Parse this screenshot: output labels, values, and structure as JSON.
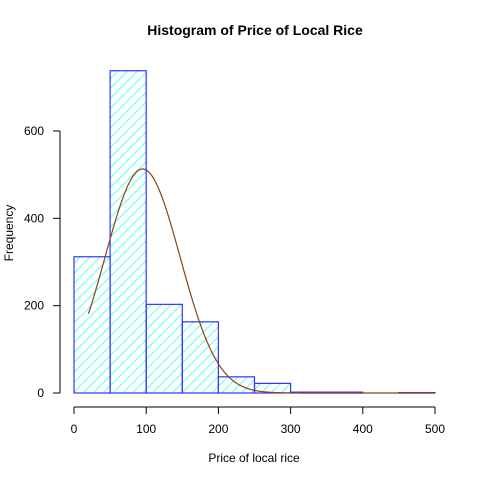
{
  "chart_data": {
    "type": "histogram",
    "title": "Histogram of Price of Local Rice",
    "xlabel": "Price of local rice",
    "ylabel": "Frequency",
    "xlim": [
      0,
      500
    ],
    "ylim": [
      0,
      740
    ],
    "x_ticks": [
      0,
      100,
      200,
      300,
      400,
      500
    ],
    "y_ticks": [
      0,
      200,
      400,
      600
    ],
    "bins": [
      {
        "start": 0,
        "end": 50,
        "count": 312
      },
      {
        "start": 50,
        "end": 100,
        "count": 738
      },
      {
        "start": 100,
        "end": 150,
        "count": 203
      },
      {
        "start": 150,
        "end": 200,
        "count": 163
      },
      {
        "start": 200,
        "end": 250,
        "count": 37
      },
      {
        "start": 250,
        "end": 300,
        "count": 22
      },
      {
        "start": 300,
        "end": 350,
        "count": 2
      },
      {
        "start": 350,
        "end": 400,
        "count": 2
      },
      {
        "start": 400,
        "end": 450,
        "count": 0
      },
      {
        "start": 450,
        "end": 500,
        "count": 1
      }
    ],
    "density_curve": {
      "type": "normal",
      "mean": 95,
      "sd": 52,
      "peak_frequency": 513,
      "x_range": [
        20,
        500
      ]
    },
    "grid": false,
    "colors": {
      "bar_border": "#3333ff",
      "bar_hatch": "#66ffee",
      "curve": "#8b4513"
    }
  }
}
